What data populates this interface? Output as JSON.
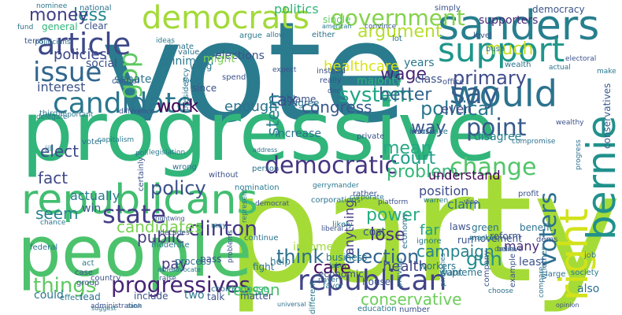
{
  "words": [
    {
      "text": "vote",
      "color": "#2b7b8e"
    },
    {
      "text": "party",
      "color": "#a5db36"
    },
    {
      "text": "progressive",
      "color": "#31b57b"
    },
    {
      "text": "people",
      "color": "#4cc26c"
    },
    {
      "text": "republicans",
      "color": "#42be71"
    },
    {
      "text": "democrats",
      "color": "#a2da37"
    },
    {
      "text": "sanders",
      "color": "#277f8e"
    },
    {
      "text": "support",
      "color": "#1f968b"
    },
    {
      "text": "would",
      "color": "#2c728e"
    },
    {
      "text": "candidate",
      "color": "#2a768e"
    },
    {
      "text": "article",
      "color": "#3e4989"
    },
    {
      "text": "issue",
      "color": "#31668e"
    },
    {
      "text": "gop",
      "color": "#5ec962"
    },
    {
      "text": "say",
      "color": "#355f8d"
    },
    {
      "text": "government",
      "color": "#83d34b"
    },
    {
      "text": "democratic",
      "color": "#453781"
    },
    {
      "text": "republican",
      "color": "#414487"
    },
    {
      "text": "bernie",
      "color": "#21918c"
    },
    {
      "text": "right",
      "color": "#d2e21b"
    },
    {
      "text": "change",
      "color": "#52c569"
    },
    {
      "text": "point",
      "color": "#38598c"
    },
    {
      "text": "voters",
      "color": "#2d708e"
    },
    {
      "text": "state",
      "color": "#433e85"
    },
    {
      "text": "clinton",
      "color": "#443983"
    },
    {
      "text": "think",
      "color": "#2e6f8e"
    },
    {
      "text": "election",
      "color": "#32648e"
    },
    {
      "text": "progressives",
      "color": "#482576"
    },
    {
      "text": "things",
      "color": "#5ec962"
    },
    {
      "text": "system",
      "color": "#21a685"
    },
    {
      "text": "political",
      "color": "#2a788e"
    },
    {
      "text": "policy",
      "color": "#3b528b"
    },
    {
      "text": "tax",
      "color": "#3b528b"
    },
    {
      "text": "gun",
      "color": "#21918c"
    },
    {
      "text": "care",
      "color": "#440154"
    },
    {
      "text": "work",
      "color": "#440154"
    },
    {
      "text": "wage",
      "color": "#482878"
    },
    {
      "text": "primary",
      "color": "#3e4c8a"
    },
    {
      "text": "policies",
      "color": "#3e4989"
    },
    {
      "text": "less",
      "color": "#24868e"
    },
    {
      "text": "money",
      "color": "#424086"
    },
    {
      "text": "interest",
      "color": "#3b528b"
    },
    {
      "text": "argument",
      "color": "#b5de2b"
    },
    {
      "text": "much",
      "color": "#c8e020"
    },
    {
      "text": "better",
      "color": "#33638d"
    },
    {
      "text": "congress",
      "color": "#38588c"
    },
    {
      "text": "way",
      "color": "#38588c"
    },
    {
      "text": "mean",
      "color": "#22a884"
    },
    {
      "text": "court",
      "color": "#1f9e89"
    },
    {
      "text": "problem",
      "color": "#35b779"
    },
    {
      "text": "elect",
      "color": "#3e4989"
    },
    {
      "text": "fact",
      "color": "#3e4989"
    },
    {
      "text": "seem",
      "color": "#27808e"
    },
    {
      "text": "candidates",
      "color": "#7ad151"
    },
    {
      "text": "public",
      "color": "#443a83"
    },
    {
      "text": "power",
      "color": "#27ad81"
    },
    {
      "text": "lose",
      "color": "#46337e"
    },
    {
      "text": "pay",
      "color": "#46337e"
    },
    {
      "text": "reason",
      "color": "#4ac16d"
    },
    {
      "text": "conservative",
      "color": "#6ccd5a"
    },
    {
      "text": "campaign",
      "color": "#26828e"
    },
    {
      "text": "health",
      "color": "#3f4788"
    },
    {
      "text": "enough",
      "color": "#2c728e"
    },
    {
      "text": "stein",
      "color": "#25848e"
    },
    {
      "text": "healthcare",
      "color": "#d8e219"
    },
    {
      "text": "politics",
      "color": "#31b57b"
    },
    {
      "text": "even",
      "color": "#414487"
    },
    {
      "text": "claim",
      "color": "#2c728e"
    },
    {
      "text": "position",
      "color": "#3e4c8a"
    },
    {
      "text": "understand",
      "color": "#440154"
    },
    {
      "text": "anything",
      "color": "#433e85"
    },
    {
      "text": "far",
      "color": "#1fa088"
    },
    {
      "text": "economic",
      "color": "#3b528b"
    },
    {
      "text": "disagree",
      "color": "#27808e"
    },
    {
      "text": "many",
      "color": "#472c7a"
    },
    {
      "text": "least",
      "color": "#3b528b"
    },
    {
      "text": "also",
      "color": "#2d708e"
    },
    {
      "text": "actually",
      "color": "#2a788e"
    },
    {
      "text": "win",
      "color": "#38598c"
    },
    {
      "text": "senate",
      "color": "#2a768e"
    },
    {
      "text": "social",
      "color": "#3b528b"
    },
    {
      "text": "minimum",
      "color": "#2a788e"
    },
    {
      "text": "elections",
      "color": "#3b528b"
    },
    {
      "text": "might",
      "color": "#7ad151"
    },
    {
      "text": "agree",
      "color": "#2c728e"
    },
    {
      "text": "blame",
      "color": "#3b528b"
    },
    {
      "text": "majority",
      "color": "#31b57b"
    },
    {
      "text": "years",
      "color": "#2a788e"
    },
    {
      "text": "class",
      "color": "#3b528b"
    },
    {
      "text": "conservatives",
      "color": "#38598c"
    },
    {
      "text": "supporters",
      "color": "#482878"
    },
    {
      "text": "democracy",
      "color": "#3b528b"
    },
    {
      "text": "single",
      "color": "#5ec962"
    },
    {
      "text": "national",
      "color": "#2c728e"
    },
    {
      "text": "general",
      "color": "#31b57b"
    },
    {
      "text": "clear",
      "color": "#3b528b"
    },
    {
      "text": "increase",
      "color": "#2c728e"
    },
    {
      "text": "cost",
      "color": "#38598c"
    },
    {
      "text": "run",
      "color": "#3b528b"
    },
    {
      "text": "movement",
      "color": "#38598c"
    },
    {
      "text": "reform",
      "color": "#3b528b"
    },
    {
      "text": "benefit",
      "color": "#2c728e"
    },
    {
      "text": "green",
      "color": "#2c728e"
    },
    {
      "text": "laws",
      "color": "#3b528b"
    },
    {
      "text": "income",
      "color": "#9fda3a"
    },
    {
      "text": "help",
      "color": "#2a788e"
    },
    {
      "text": "fight",
      "color": "#2c728e"
    },
    {
      "text": "business",
      "color": "#2a788e"
    },
    {
      "text": "house",
      "color": "#3b528b"
    },
    {
      "text": "workers",
      "color": "#2c728e"
    },
    {
      "text": "oppose",
      "color": "#31b57b"
    },
    {
      "text": "matter",
      "color": "#3b528b"
    },
    {
      "text": "supreme",
      "color": "#2c728e"
    },
    {
      "text": "want",
      "color": "#2a788e"
    },
    {
      "text": "two",
      "color": "#2a788e"
    },
    {
      "text": "talk",
      "color": "#3b528b"
    },
    {
      "text": "could",
      "color": "#2a788e"
    },
    {
      "text": "lead",
      "color": "#2c728e"
    },
    {
      "text": "include",
      "color": "#3b528b"
    },
    {
      "text": "education",
      "color": "#2a788e"
    },
    {
      "text": "number",
      "color": "#3b528b"
    },
    {
      "text": "process",
      "color": "#2c728e"
    },
    {
      "text": "pass",
      "color": "#3b528b"
    },
    {
      "text": "country",
      "color": "#3b528b"
    },
    {
      "text": "continue",
      "color": "#2c728e"
    },
    {
      "text": "nominee",
      "color": "#2a788e"
    },
    {
      "text": "fund",
      "color": "#2c728e"
    },
    {
      "text": "term",
      "color": "#3b528b"
    },
    {
      "text": "climate",
      "color": "#2c728e"
    },
    {
      "text": "spend",
      "color": "#3b528b"
    },
    {
      "text": "wing",
      "color": "#2a788e"
    },
    {
      "text": "since",
      "color": "#3b528b"
    },
    {
      "text": "wealth",
      "color": "#2c728e"
    },
    {
      "text": "level",
      "color": "#3b528b"
    },
    {
      "text": "bush",
      "color": "#2a788e"
    },
    {
      "text": "simply",
      "color": "#3b528b"
    },
    {
      "text": "lot",
      "color": "#2c728e"
    },
    {
      "text": "office",
      "color": "#3b528b"
    },
    {
      "text": "insurance",
      "color": "#2a788e"
    },
    {
      "text": "private",
      "color": "#3b528b"
    },
    {
      "text": "third",
      "color": "#2c728e"
    },
    {
      "text": "difference",
      "color": "#3b528b"
    },
    {
      "text": "jill",
      "color": "#2a788e"
    },
    {
      "text": "voter",
      "color": "#2c728e"
    },
    {
      "text": "worse",
      "color": "#3b528b"
    },
    {
      "text": "nomination",
      "color": "#2a788e"
    },
    {
      "text": "corporations",
      "color": "#2c728e"
    },
    {
      "text": "rather",
      "color": "#3b528b"
    },
    {
      "text": "likely",
      "color": "#2a788e"
    },
    {
      "text": "person",
      "color": "#2c728e"
    },
    {
      "text": "without",
      "color": "#3b528b"
    },
    {
      "text": "moderate",
      "color": "#2a788e"
    },
    {
      "text": "wrong",
      "color": "#2c728e"
    },
    {
      "text": "dems",
      "color": "#3b528b"
    },
    {
      "text": "job",
      "color": "#2a788e"
    },
    {
      "text": "whether",
      "color": "#2c728e"
    },
    {
      "text": "example",
      "color": "#3b528b"
    },
    {
      "text": "society",
      "color": "#2a788e"
    },
    {
      "text": "large",
      "color": "#2c728e"
    },
    {
      "text": "company",
      "color": "#3b528b"
    },
    {
      "text": "market",
      "color": "#2a788e"
    },
    {
      "text": "choice",
      "color": "#2c728e"
    },
    {
      "text": "group",
      "color": "#3b528b"
    },
    {
      "text": "effect",
      "color": "#2a788e"
    },
    {
      "text": "federal",
      "color": "#2c728e"
    },
    {
      "text": "case",
      "color": "#3b528b"
    },
    {
      "text": "act",
      "color": "#2a788e"
    },
    {
      "text": "favor",
      "color": "#2c728e"
    },
    {
      "text": "instead",
      "color": "#3b528b"
    },
    {
      "text": "argue",
      "color": "#2a788e"
    },
    {
      "text": "either",
      "color": "#2c728e"
    },
    {
      "text": "really",
      "color": "#3b528b"
    },
    {
      "text": "presidency",
      "color": "#2a788e"
    },
    {
      "text": "value",
      "color": "#2c728e"
    },
    {
      "text": "control",
      "color": "#3b528b"
    },
    {
      "text": "ideas",
      "color": "#2a788e"
    },
    {
      "text": "allow",
      "color": "#2c728e"
    },
    {
      "text": "expect",
      "color": "#3b528b"
    },
    {
      "text": "warren",
      "color": "#2a788e"
    },
    {
      "text": "provide",
      "color": "#2c728e"
    },
    {
      "text": "vice",
      "color": "#3b528b"
    },
    {
      "text": "different",
      "color": "#2a788e"
    },
    {
      "text": "economy",
      "color": "#2c728e"
    },
    {
      "text": "profit",
      "color": "#3b528b"
    },
    {
      "text": "ignore",
      "color": "#2a788e"
    },
    {
      "text": "able",
      "color": "#2c728e"
    },
    {
      "text": "raise",
      "color": "#3b528b"
    },
    {
      "text": "represent",
      "color": "#2a788e"
    },
    {
      "text": "address",
      "color": "#2c728e"
    },
    {
      "text": "certainly",
      "color": "#3b528b"
    },
    {
      "text": "focus",
      "color": "#2a788e"
    },
    {
      "text": "actual",
      "color": "#2c728e"
    },
    {
      "text": "wealthy",
      "color": "#3b528b"
    },
    {
      "text": "capitalism",
      "color": "#2a788e"
    },
    {
      "text": "poll",
      "color": "#2c728e"
    },
    {
      "text": "platform",
      "color": "#3b528b"
    },
    {
      "text": "desire",
      "color": "#2a788e"
    },
    {
      "text": "compare",
      "color": "#2c728e"
    },
    {
      "text": "opinion",
      "color": "#3b528b"
    },
    {
      "text": "suggest",
      "color": "#2a788e"
    },
    {
      "text": "universal",
      "color": "#2c728e"
    },
    {
      "text": "decades",
      "color": "#3b528b"
    },
    {
      "text": "labor",
      "color": "#2a788e"
    },
    {
      "text": "choose",
      "color": "#2c728e"
    },
    {
      "text": "electoral",
      "color": "#3b528b"
    },
    {
      "text": "american",
      "color": "#2a788e"
    },
    {
      "text": "corporate",
      "color": "#2c728e"
    },
    {
      "text": "liberal",
      "color": "#3b528b"
    },
    {
      "text": "gerrymander",
      "color": "#2a788e"
    },
    {
      "text": "chance",
      "color": "#2c728e"
    },
    {
      "text": "administration",
      "color": "#3b528b"
    },
    {
      "text": "legislation",
      "color": "#2a788e"
    },
    {
      "text": "delegate",
      "color": "#2c728e"
    },
    {
      "text": "problems",
      "color": "#3b528b"
    },
    {
      "text": "important",
      "color": "#2a788e"
    },
    {
      "text": "payer",
      "color": "#2c728e"
    },
    {
      "text": "rightwing",
      "color": "#3b528b"
    },
    {
      "text": "advocate",
      "color": "#2a788e"
    },
    {
      "text": "compromise",
      "color": "#2c728e"
    },
    {
      "text": "convince",
      "color": "#3b528b"
    },
    {
      "text": "primaries",
      "color": "#2a788e"
    },
    {
      "text": "progress",
      "color": "#2c728e"
    },
    {
      "text": "believe",
      "color": "#3b528b"
    },
    {
      "text": "may",
      "color": "#2a788e"
    },
    {
      "text": "sank",
      "color": "#2c728e"
    },
    {
      "text": "dnc",
      "color": "#3b528b"
    },
    {
      "text": "make",
      "color": "#2a788e"
    },
    {
      "text": "politicians",
      "color": "#2c728e"
    },
    {
      "text": "democrat",
      "color": "#3b528b"
    }
  ]
}
